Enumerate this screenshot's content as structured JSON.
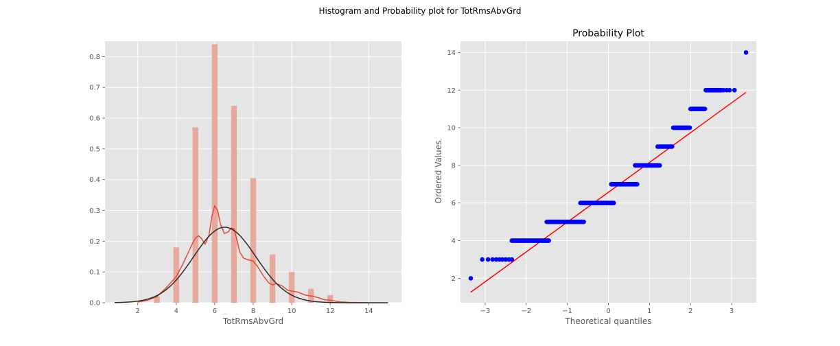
{
  "figure_title": "Histogram and Probability plot for TotRmsAbvGrd",
  "colors": {
    "axes_bg": "#e5e5e5",
    "grid": "#ffffff",
    "hist_bar": "#e8a99d",
    "kde_line": "#e24a33",
    "norm_line": "#2b2b2b",
    "points": "#0000ff",
    "fit_line": "#ff0000",
    "tick_text": "#555555"
  },
  "chart_data": [
    {
      "type": "bar",
      "title": "",
      "xlabel": "TotRmsAbvGrd",
      "ylabel": "",
      "xlim": [
        0.3,
        15.7
      ],
      "ylim": [
        0,
        0.85
      ],
      "xticks": [
        2,
        4,
        6,
        8,
        10,
        12,
        14
      ],
      "xtick_labels": [
        "2",
        "4",
        "6",
        "8",
        "10",
        "12",
        "14"
      ],
      "yticks": [
        0,
        0.1,
        0.2,
        0.3,
        0.4,
        0.5,
        0.6,
        0.7,
        0.8
      ],
      "ytick_labels": [
        "0.0",
        "0.1",
        "0.2",
        "0.3",
        "0.4",
        "0.5",
        "0.6",
        "0.7",
        "0.8"
      ],
      "bar_width": 0.3,
      "bars": [
        {
          "x": 2,
          "value": 0.0
        },
        {
          "x": 3,
          "value": 0.02
        },
        {
          "x": 4,
          "value": 0.18
        },
        {
          "x": 5,
          "value": 0.57
        },
        {
          "x": 6,
          "value": 0.84
        },
        {
          "x": 7,
          "value": 0.64
        },
        {
          "x": 8,
          "value": 0.405
        },
        {
          "x": 9,
          "value": 0.157
        },
        {
          "x": 10,
          "value": 0.1
        },
        {
          "x": 11,
          "value": 0.045
        },
        {
          "x": 12,
          "value": 0.025
        },
        {
          "x": 14,
          "value": 0.001
        }
      ],
      "kde_series": {
        "name": "KDE",
        "x": [
          2.0,
          2.5,
          3.0,
          3.5,
          4.0,
          4.3,
          4.6,
          4.9,
          5.0,
          5.15,
          5.3,
          5.5,
          5.7,
          5.85,
          6.0,
          6.15,
          6.3,
          6.5,
          6.7,
          6.85,
          7.0,
          7.15,
          7.3,
          7.5,
          7.7,
          7.85,
          8.0,
          8.2,
          8.5,
          8.8,
          9.0,
          9.2,
          9.5,
          9.8,
          10.0,
          10.3,
          10.7,
          11.0,
          11.3,
          11.7,
          12.0,
          12.5,
          13.0,
          13.5,
          14.0
        ],
        "y": [
          0.002,
          0.008,
          0.02,
          0.05,
          0.085,
          0.12,
          0.16,
          0.2,
          0.21,
          0.218,
          0.21,
          0.19,
          0.22,
          0.28,
          0.315,
          0.3,
          0.255,
          0.225,
          0.23,
          0.243,
          0.24,
          0.205,
          0.165,
          0.145,
          0.14,
          0.138,
          0.135,
          0.12,
          0.09,
          0.065,
          0.058,
          0.062,
          0.055,
          0.04,
          0.038,
          0.035,
          0.025,
          0.022,
          0.018,
          0.01,
          0.008,
          0.003,
          0.001,
          0.0005,
          0.0
        ]
      },
      "normal_fit": {
        "name": "Normal fit",
        "mean": 6.52,
        "std": 1.625,
        "x_range": [
          0.8,
          15.0
        ]
      }
    },
    {
      "type": "scatter",
      "title": "Probability Plot",
      "xlabel": "Theoretical quantiles",
      "ylabel": "Ordered Values",
      "xlim": [
        -3.6,
        3.6
      ],
      "ylim": [
        0.7,
        14.6
      ],
      "xticks": [
        -3,
        -2,
        -1,
        0,
        1,
        2,
        3
      ],
      "xtick_labels": [
        "−3",
        "−2",
        "−1",
        "0",
        "1",
        "2",
        "3"
      ],
      "yticks": [
        2,
        4,
        6,
        8,
        10,
        12,
        14
      ],
      "ytick_labels": [
        "2",
        "4",
        "6",
        "8",
        "10",
        "12",
        "14"
      ],
      "level_runs": [
        {
          "y": 4,
          "x_start": -2.35,
          "x_end": -1.45
        },
        {
          "y": 5,
          "x_start": -1.5,
          "x_end": -0.6
        },
        {
          "y": 6,
          "x_start": -0.68,
          "x_end": 0.13
        },
        {
          "y": 7,
          "x_start": 0.07,
          "x_end": 0.7
        },
        {
          "y": 8,
          "x_start": 0.65,
          "x_end": 1.25
        },
        {
          "y": 9,
          "x_start": 1.2,
          "x_end": 1.55
        },
        {
          "y": 10,
          "x_start": 1.58,
          "x_end": 1.98
        },
        {
          "y": 11,
          "x_start": 2.0,
          "x_end": 2.35
        },
        {
          "y": 12,
          "x_start": 2.37,
          "x_end": 2.75
        }
      ],
      "points": [
        {
          "x": -3.35,
          "y": 2
        },
        {
          "x": -3.07,
          "y": 3
        },
        {
          "x": -2.93,
          "y": 3
        },
        {
          "x": -2.82,
          "y": 3
        },
        {
          "x": -2.73,
          "y": 3
        },
        {
          "x": -2.65,
          "y": 3
        },
        {
          "x": -2.58,
          "y": 3
        },
        {
          "x": -2.5,
          "y": 3
        },
        {
          "x": -2.42,
          "y": 3
        },
        {
          "x": -2.35,
          "y": 3
        },
        {
          "x": 2.8,
          "y": 12
        },
        {
          "x": 2.88,
          "y": 12
        },
        {
          "x": 2.95,
          "y": 12
        },
        {
          "x": 3.07,
          "y": 12
        },
        {
          "x": 3.35,
          "y": 14
        }
      ],
      "fit_line": {
        "name": "Fit line",
        "slope": 1.585,
        "intercept": 6.57,
        "x_range": [
          -3.35,
          3.35
        ]
      }
    }
  ]
}
